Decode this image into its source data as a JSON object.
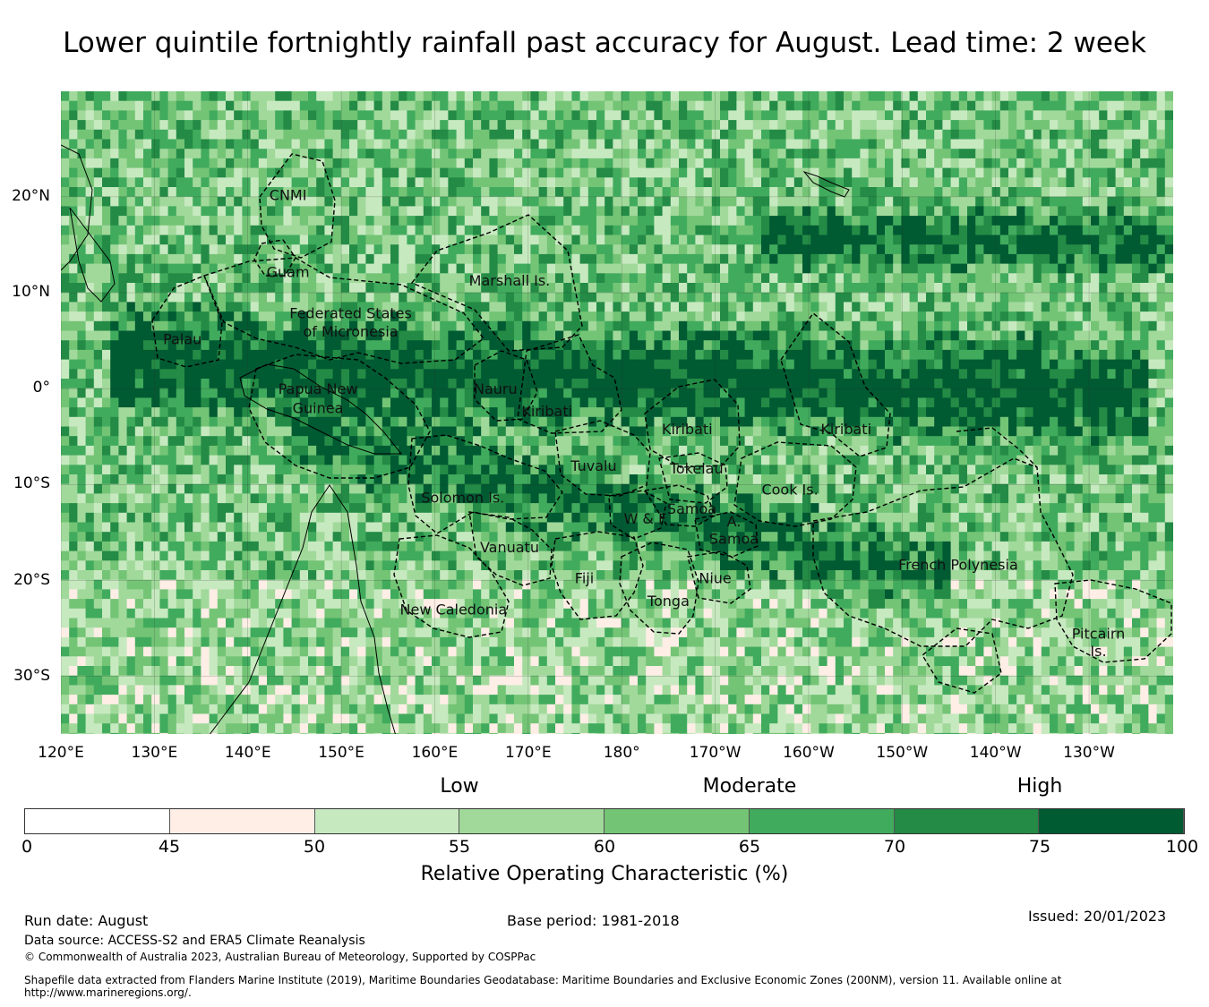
{
  "title": "Lower quintile fortnightly rainfall past accuracy for August. Lead time: 2 week",
  "map": {
    "lon_range": [
      120,
      239
    ],
    "lat_range": [
      -36,
      31
    ],
    "y_ticks": [
      {
        "lat": 20,
        "label": "20°N"
      },
      {
        "lat": 10,
        "label": "10°N"
      },
      {
        "lat": 0,
        "label": "0°"
      },
      {
        "lat": -10,
        "label": "10°S"
      },
      {
        "lat": -20,
        "label": "20°S"
      },
      {
        "lat": -30,
        "label": "30°S"
      }
    ],
    "x_ticks": [
      {
        "lon": 120,
        "label": "120°E"
      },
      {
        "lon": 130,
        "label": "130°E"
      },
      {
        "lon": 140,
        "label": "140°E"
      },
      {
        "lon": 150,
        "label": "150°E"
      },
      {
        "lon": 160,
        "label": "160°E"
      },
      {
        "lon": 170,
        "label": "170°E"
      },
      {
        "lon": 180,
        "label": "180°"
      },
      {
        "lon": 190,
        "label": "170°W"
      },
      {
        "lon": 200,
        "label": "160°W"
      },
      {
        "lon": 210,
        "label": "150°W"
      },
      {
        "lon": 220,
        "label": "140°W"
      },
      {
        "lon": 230,
        "label": "130°W"
      }
    ],
    "regions": [
      {
        "name": "CNMI",
        "lon": 144.3,
        "lat": 20.2
      },
      {
        "name": "Guam",
        "lon": 144.3,
        "lat": 12.2
      },
      {
        "name": "Marshall Is.",
        "lon": 168.0,
        "lat": 11.3
      },
      {
        "name": "Federated States",
        "lon": 151.0,
        "lat": 7.9
      },
      {
        "name": "of Micronesia",
        "lon": 151.0,
        "lat": 6.0
      },
      {
        "name": "Palau",
        "lon": 133.0,
        "lat": 5.2
      },
      {
        "name": "Papua New",
        "lon": 147.5,
        "lat": 0.0
      },
      {
        "name": "Guinea",
        "lon": 147.5,
        "lat": -2.0
      },
      {
        "name": "Nauru",
        "lon": 166.5,
        "lat": 0.0
      },
      {
        "name": "Kiribati",
        "lon": 172.0,
        "lat": -2.3
      },
      {
        "name": "Kiribati",
        "lon": 187.0,
        "lat": -4.2
      },
      {
        "name": "Kiribati",
        "lon": 204.0,
        "lat": -4.2
      },
      {
        "name": "Tuvalu",
        "lon": 177.0,
        "lat": -8.0
      },
      {
        "name": "Tokelau",
        "lon": 188.0,
        "lat": -8.3
      },
      {
        "name": "Cook Is.",
        "lon": 198.0,
        "lat": -10.5
      },
      {
        "name": "Solomon Is.",
        "lon": 163.0,
        "lat": -11.3
      },
      {
        "name": "Samoa",
        "lon": 187.5,
        "lat": -12.5
      },
      {
        "name": "W & F",
        "lon": 182.5,
        "lat": -13.5
      },
      {
        "name": "A.",
        "lon": 192.0,
        "lat": -13.8
      },
      {
        "name": "Samoa",
        "lon": 192.0,
        "lat": -15.6
      },
      {
        "name": "Vanuatu",
        "lon": 168.0,
        "lat": -16.5
      },
      {
        "name": "French Polynesia",
        "lon": 216.0,
        "lat": -18.3
      },
      {
        "name": "Fiji",
        "lon": 176.0,
        "lat": -19.7
      },
      {
        "name": "Niue",
        "lon": 190.0,
        "lat": -19.7
      },
      {
        "name": "Tonga",
        "lon": 185.0,
        "lat": -22.1
      },
      {
        "name": "New Caledonia",
        "lon": 162.0,
        "lat": -23.0
      },
      {
        "name": "Pitcairn",
        "lon": 231.0,
        "lat": -25.5
      },
      {
        "name": "Is.",
        "lon": 231.0,
        "lat": -27.3
      }
    ]
  },
  "colorbar": {
    "categories": [
      {
        "label": "Low",
        "value": 55
      },
      {
        "label": "Moderate",
        "value": 65
      },
      {
        "label": "High",
        "value": 75
      }
    ],
    "bins": [
      {
        "from": 0,
        "to": 45,
        "color": "#ffffff"
      },
      {
        "from": 45,
        "to": 50,
        "color": "#feeee6"
      },
      {
        "from": 50,
        "to": 55,
        "color": "#c7e9c0"
      },
      {
        "from": 55,
        "to": 60,
        "color": "#a1d99b"
      },
      {
        "from": 60,
        "to": 65,
        "color": "#74c476"
      },
      {
        "from": 65,
        "to": 70,
        "color": "#41ab5d"
      },
      {
        "from": 70,
        "to": 75,
        "color": "#238b45"
      },
      {
        "from": 75,
        "to": 100,
        "color": "#005a32"
      }
    ],
    "ticks": [
      "0",
      "45",
      "50",
      "55",
      "60",
      "65",
      "70",
      "75",
      "100"
    ],
    "label": "Relative Operating Characteristic (%)"
  },
  "footer": {
    "run_date": "Run date: August",
    "base_period": "Base period: 1981-2018",
    "issued": "Issued: 20/01/2023",
    "data_source": "Data source: ACCESS-S2 and ERA5 Climate Reanalysis",
    "copyright": "© Commonwealth of Australia 2023, Australian Bureau of Meteorology, Supported by COSPPac",
    "shapefile_line1": "Shapefile data extracted from Flanders Marine Institute (2019), Maritime Boundaries Geodatabase: Maritime Boundaries and Exclusive Economic Zones (200NM), version 11. Available online at",
    "shapefile_line2": "http://www.marineregions.org/."
  }
}
